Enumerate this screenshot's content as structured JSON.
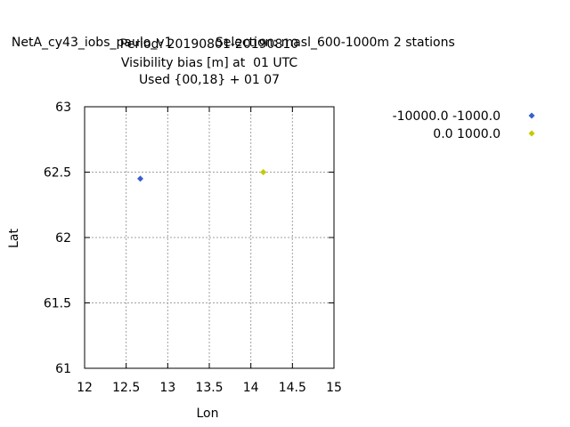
{
  "header": {
    "line1_left": "NetA_cy43_iobs_paulo_v1",
    "line1_selection": "Selection: masl_600-1000m",
    "line1_stations": "2 stations",
    "line2": "Period: 20190801-20190810",
    "line3": "Visibility bias [m] at  01 UTC",
    "line4": "Used {00,18} + 01 07"
  },
  "chart_data": {
    "type": "scatter",
    "xlabel": "Lon",
    "ylabel": "Lat",
    "xlim": [
      12,
      15
    ],
    "ylim": [
      61,
      63
    ],
    "xticks": [
      "12",
      "12.5",
      "13",
      "13.5",
      "14",
      "14.5",
      "15"
    ],
    "yticks": [
      "61",
      "61.5",
      "62",
      "62.5",
      "63"
    ],
    "grid": true,
    "legend_position": "outside-top-right",
    "series": [
      {
        "name": "-10000.0 -1000.0",
        "color": "#3a5fcd",
        "marker": "diamond",
        "points": [
          {
            "x": 12.67,
            "y": 62.45
          }
        ]
      },
      {
        "name": "0.0 1000.0",
        "color": "#c8c800",
        "marker": "diamond",
        "points": [
          {
            "x": 14.15,
            "y": 62.5
          }
        ]
      }
    ]
  }
}
